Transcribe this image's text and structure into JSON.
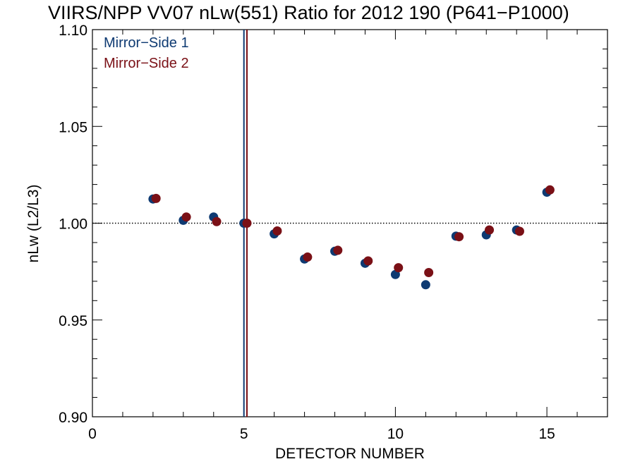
{
  "chart_data": {
    "type": "scatter",
    "title": "VIIRS/NPP VV07 nLw(551) Ratio for 2012 190 (P641−P1000)",
    "xlabel": "DETECTOR NUMBER",
    "ylabel": "nLw (L2/L3)",
    "xlim": [
      0,
      17
    ],
    "ylim": [
      0.9,
      1.1
    ],
    "xticks": [
      0,
      5,
      10,
      15
    ],
    "xtick_labels": [
      "0",
      "5",
      "10",
      "15"
    ],
    "yticks": [
      0.9,
      0.95,
      1.0,
      1.05,
      1.1
    ],
    "ytick_labels": [
      "0.90",
      "0.95",
      "1.00",
      "1.05",
      "1.10"
    ],
    "reference_line": {
      "y": 1.0,
      "style": "dotted"
    },
    "vertical_lines": [
      {
        "x": 5.0,
        "series": "Mirror−Side 1"
      },
      {
        "x": 5.1,
        "series": "Mirror−Side 2"
      }
    ],
    "legend_position": "top-left",
    "grid": false,
    "series": [
      {
        "name": "Mirror−Side 1",
        "color": "#0e3a72",
        "x": [
          2,
          3,
          4,
          5,
          6,
          7,
          8,
          9,
          10,
          11,
          12,
          13,
          14,
          15
        ],
        "y": [
          1.0125,
          1.0015,
          1.0032,
          1.0,
          0.9945,
          0.9815,
          0.9855,
          0.9793,
          0.9735,
          0.9682,
          0.9933,
          0.994,
          0.9965,
          1.016
        ]
      },
      {
        "name": "Mirror−Side 2",
        "color": "#7a1016",
        "x": [
          2.1,
          3.1,
          4.1,
          5.1,
          6.1,
          7.1,
          8.1,
          9.1,
          10.1,
          11.1,
          12.1,
          13.1,
          14.1,
          15.1
        ],
        "y": [
          1.0128,
          1.0032,
          1.0008,
          1.0,
          0.996,
          0.9825,
          0.986,
          0.9805,
          0.977,
          0.9745,
          0.993,
          0.9965,
          0.9958,
          1.0172
        ]
      }
    ]
  }
}
